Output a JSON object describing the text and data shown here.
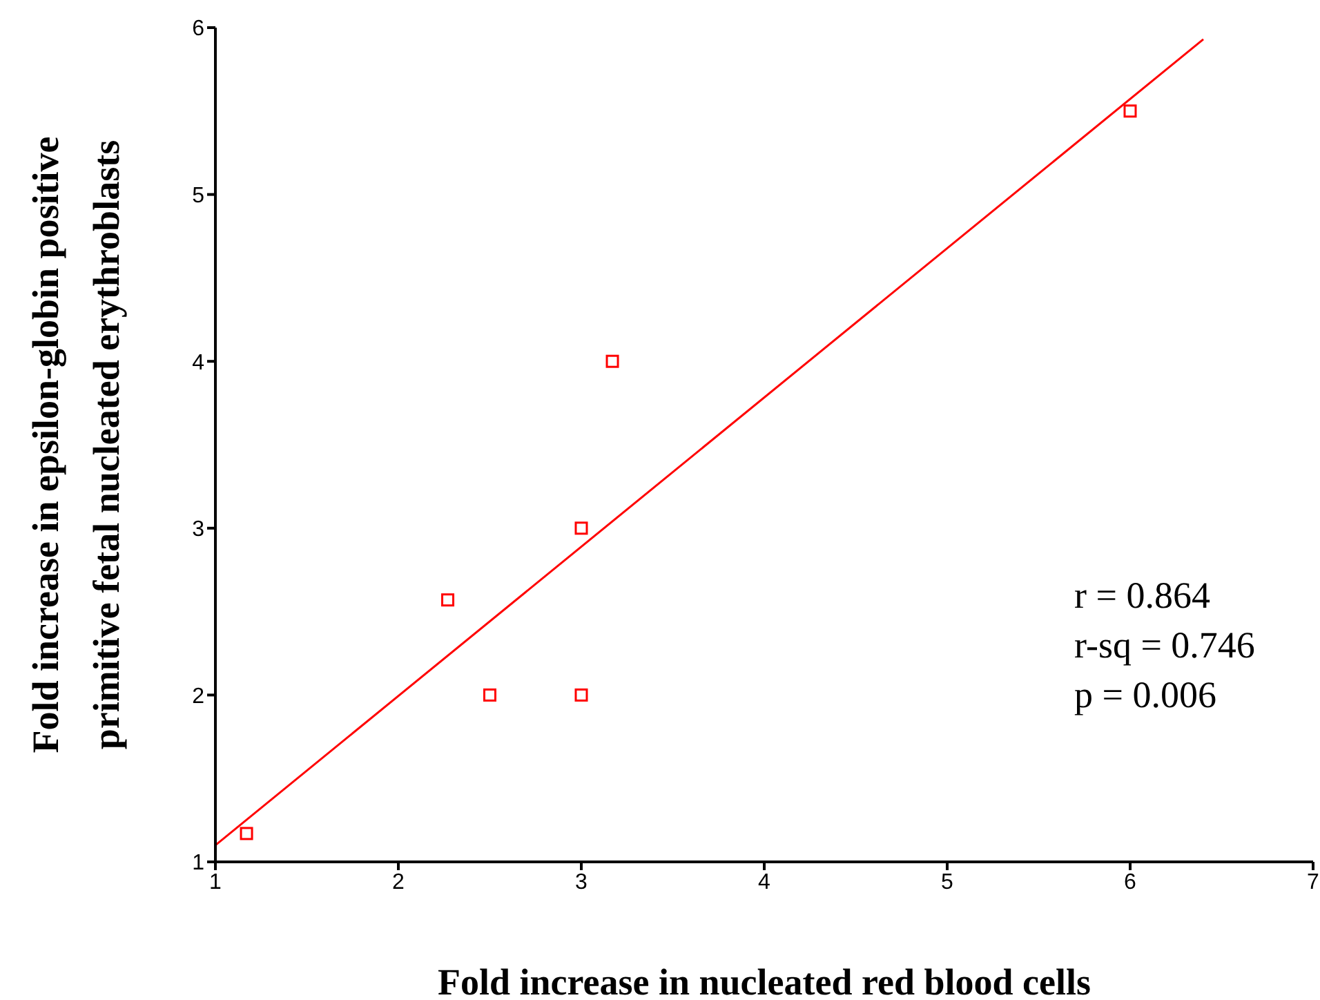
{
  "chart_data": {
    "type": "scatter",
    "xlabel": "Fold increase in nucleated red blood cells",
    "ylabel": "Fold increase in epsilon-globin positive primitive fetal nucleated erythroblasts",
    "xlim": [
      1,
      7
    ],
    "ylim": [
      1,
      6
    ],
    "xticks": [
      1,
      2,
      3,
      4,
      5,
      6,
      7
    ],
    "yticks": [
      1,
      2,
      3,
      4,
      5,
      6
    ],
    "grid": false,
    "legend": false,
    "marker": "square",
    "series": [
      {
        "color": "#ff0000",
        "x": [
          1.17,
          2.27,
          2.5,
          3,
          3,
          3.17,
          6
        ],
        "values": [
          1.17,
          2.57,
          2,
          2,
          3,
          4,
          5.5
        ]
      },
      {
        "type": "line",
        "marker": "none",
        "color": "#ff0000",
        "x": [
          1,
          6.4
        ],
        "values": [
          1.1,
          5.93
        ]
      }
    ],
    "annotations": [
      "r = 0.864",
      "r-sq = 0.746",
      "p = 0.006"
    ]
  }
}
